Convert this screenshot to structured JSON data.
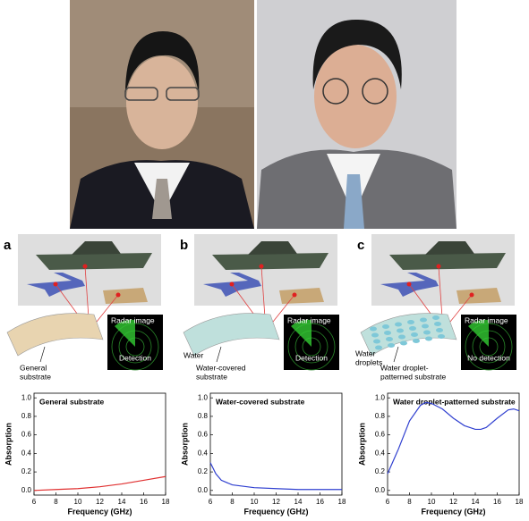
{
  "panels": [
    {
      "label": "a",
      "substrate_lines": [
        "General",
        "substrate"
      ],
      "radar_title": "Radar image",
      "radar_result": "Detection"
    },
    {
      "label": "b",
      "water_label": "Water",
      "substrate_lines": [
        "Water-covered",
        "substrate"
      ],
      "radar_title": "Radar image",
      "radar_result": "Detection"
    },
    {
      "label": "c",
      "water_lines": [
        "Water",
        "droplets"
      ],
      "substrate_lines": [
        "Water droplet-",
        "patterned substrate"
      ],
      "radar_title": "Radar image",
      "radar_result": "No detection"
    }
  ],
  "chart_data": [
    {
      "type": "line",
      "title": "General substrate",
      "x_label": "Frequency (GHz)",
      "y_label": "Absorption",
      "x": [
        6,
        8,
        10,
        12,
        14,
        16,
        18
      ],
      "values": [
        0.0,
        0.01,
        0.02,
        0.04,
        0.07,
        0.11,
        0.15
      ],
      "color": "#e03030",
      "xlim": [
        6,
        18
      ],
      "xticks": [
        6,
        8,
        10,
        12,
        14,
        16,
        18
      ],
      "ylim": [
        -0.05,
        1.05
      ],
      "yticks": [
        {
          "value": 0,
          "label": "0.0"
        },
        0.2,
        0.4,
        0.6,
        0.8,
        {
          "value": 1,
          "label": "1.0"
        }
      ]
    },
    {
      "type": "line",
      "title": "Water-covered substrate",
      "x_label": "Frequency (GHz)",
      "y_label": "Absorption",
      "x": [
        6,
        6.5,
        7,
        8,
        10,
        12,
        14,
        16,
        18
      ],
      "values": [
        0.3,
        0.18,
        0.11,
        0.06,
        0.03,
        0.02,
        0.01,
        0.01,
        0.01
      ],
      "color": "#3040d0",
      "xlim": [
        6,
        18
      ],
      "xticks": [
        6,
        8,
        10,
        12,
        14,
        16,
        18
      ],
      "ylim": [
        -0.05,
        1.05
      ],
      "yticks": [
        {
          "value": 0,
          "label": "0.0"
        },
        0.2,
        0.4,
        0.6,
        0.8,
        {
          "value": 1,
          "label": "1.0"
        }
      ]
    },
    {
      "type": "line",
      "title": "Water droplet-patterned substrate",
      "x_label": "Frequency (GHz)",
      "y_label": "Absorption",
      "x": [
        6,
        7,
        8,
        9,
        9.5,
        10,
        11,
        12,
        13,
        14,
        14.5,
        15,
        16,
        17,
        17.5,
        18
      ],
      "values": [
        0.18,
        0.45,
        0.75,
        0.92,
        0.95,
        0.94,
        0.88,
        0.78,
        0.7,
        0.66,
        0.66,
        0.68,
        0.78,
        0.87,
        0.88,
        0.86
      ],
      "color": "#3040d0",
      "xlim": [
        6,
        18
      ],
      "xticks": [
        6,
        8,
        10,
        12,
        14,
        16,
        18
      ],
      "ylim": [
        -0.05,
        1.05
      ],
      "yticks": [
        {
          "value": 0,
          "label": "0.0"
        },
        0.2,
        0.4,
        0.6,
        0.8,
        {
          "value": 1,
          "label": "1.0"
        }
      ]
    }
  ]
}
